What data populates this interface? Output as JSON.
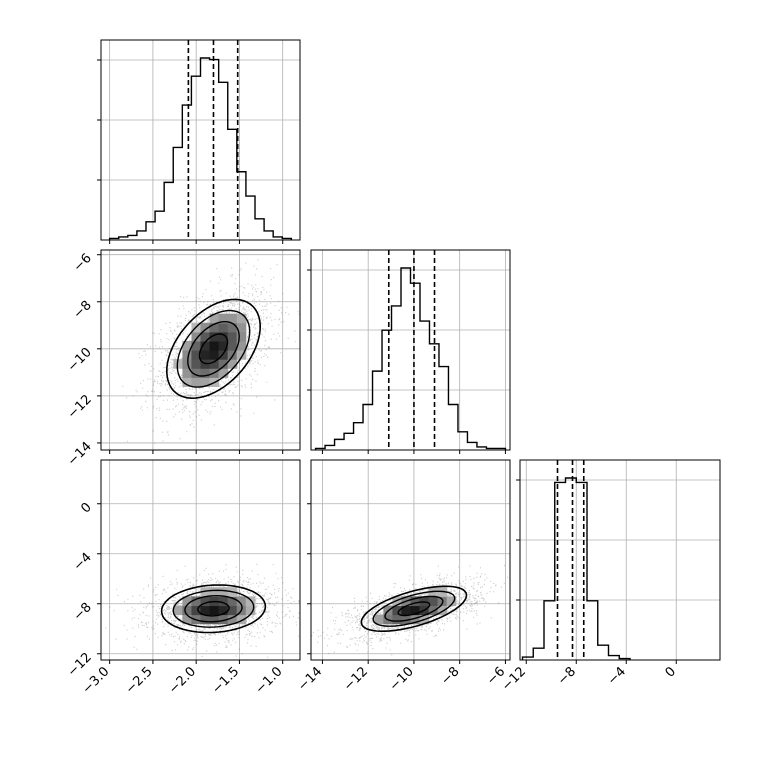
{
  "chart_data": [
    {
      "type": "histogram",
      "panel": "hist-1",
      "parameter_index": 0,
      "xlim": [
        -3.1,
        -0.8
      ],
      "bins_range": [
        -3.0,
        -0.9
      ],
      "counts": [
        1,
        2,
        3,
        6,
        12,
        19,
        38,
        61,
        89,
        108,
        120,
        119,
        104,
        73,
        45,
        29,
        14,
        6,
        2,
        1
      ],
      "quantile_lines": [
        -2.09,
        -1.8,
        -1.52
      ],
      "xtick_labels": [
        "-3.0",
        "-2.5",
        "-2.0",
        "-1.5",
        "-1.0"
      ]
    },
    {
      "type": "histogram",
      "panel": "hist-2",
      "parameter_index": 1,
      "xlim": [
        -14.5,
        -5.8
      ],
      "bins_range": [
        -14.3,
        -6.0
      ],
      "counts": [
        1,
        3,
        7,
        11,
        18,
        30,
        52,
        79,
        95,
        120,
        110,
        85,
        70,
        55,
        30,
        12,
        5,
        2,
        1,
        1
      ],
      "quantile_lines": [
        -11.1,
        -10.0,
        -9.1
      ],
      "xtick_labels": [
        "-14",
        "-12",
        "-10",
        "-8",
        "-6"
      ]
    },
    {
      "type": "histogram",
      "panel": "hist-3",
      "parameter_index": 2,
      "xlim": [
        -12.5,
        3.5
      ],
      "bins_range": [
        -12.3,
        -3.7
      ],
      "counts": [
        2,
        8,
        40,
        120,
        123,
        120,
        40,
        10,
        3,
        1
      ],
      "quantile_lines": [
        -9.5,
        -8.3,
        -7.4
      ],
      "xtick_labels": [
        "-12",
        "-8",
        "-4",
        "0"
      ]
    },
    {
      "type": "scatter-density",
      "panel": "p1-vs-p0",
      "x_param": 0,
      "y_param": 1,
      "xlim": [
        -3.1,
        -0.8
      ],
      "ylim": [
        -14.3,
        -5.8
      ],
      "center": [
        -1.8,
        -10.0
      ],
      "sd": [
        0.27,
        1.05
      ],
      "correlation": 0.45,
      "ytick_labels": [
        "-14",
        "-12",
        "-10",
        "-8",
        "-6"
      ]
    },
    {
      "type": "scatter-density",
      "panel": "p2-vs-p0",
      "x_param": 0,
      "y_param": 2,
      "xlim": [
        -3.1,
        -0.8
      ],
      "ylim": [
        -12.5,
        3.5
      ],
      "center": [
        -1.8,
        -8.4
      ],
      "sd": [
        0.3,
        0.95
      ],
      "correlation": 0.1,
      "ytick_labels": [
        "-12",
        "-8",
        "-4",
        "0"
      ]
    },
    {
      "type": "scatter-density",
      "panel": "p2-vs-p1",
      "x_param": 1,
      "y_param": 2,
      "xlim": [
        -14.5,
        -5.8
      ],
      "ylim": [
        -12.5,
        3.5
      ],
      "center": [
        -10.0,
        -8.4
      ],
      "sd": [
        1.15,
        0.9
      ],
      "correlation": 0.6
    }
  ]
}
